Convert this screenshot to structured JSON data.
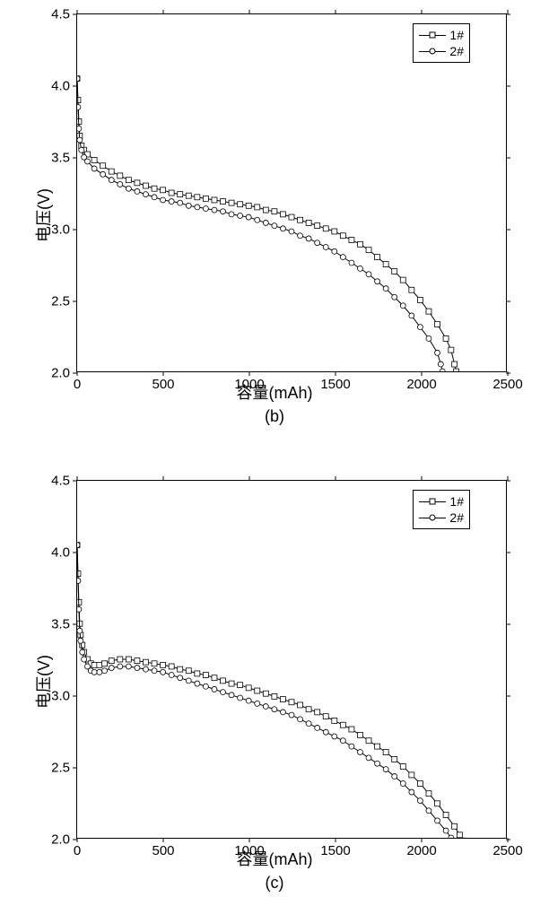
{
  "chart_b": {
    "type": "line",
    "subplot_label": "(b)",
    "xlabel": "容量(mAh)",
    "ylabel": "电压(V)",
    "xlim": [
      0,
      2500
    ],
    "ylim": [
      2.0,
      4.5
    ],
    "xtick_step": 500,
    "ytick_step": 0.5,
    "xticks": [
      0,
      500,
      1000,
      1500,
      2000,
      2500
    ],
    "yticks": [
      2.0,
      2.5,
      3.0,
      3.5,
      4.0,
      4.5
    ],
    "background_color": "#ffffff",
    "border_color": "#000000",
    "label_fontsize": 18,
    "tick_fontsize": 15,
    "series": [
      {
        "name": "1#",
        "marker": "square",
        "color": "#000000",
        "x": [
          0,
          5,
          10,
          15,
          25,
          40,
          60,
          100,
          150,
          200,
          250,
          300,
          350,
          400,
          450,
          500,
          550,
          600,
          650,
          700,
          750,
          800,
          850,
          900,
          950,
          1000,
          1050,
          1100,
          1150,
          1200,
          1250,
          1300,
          1350,
          1400,
          1450,
          1500,
          1550,
          1600,
          1650,
          1700,
          1750,
          1800,
          1850,
          1900,
          1950,
          2000,
          2050,
          2100,
          2150,
          2180,
          2200,
          2210,
          2220,
          2225,
          2230
        ],
        "y": [
          4.05,
          3.9,
          3.75,
          3.65,
          3.58,
          3.55,
          3.52,
          3.48,
          3.44,
          3.4,
          3.37,
          3.34,
          3.32,
          3.3,
          3.28,
          3.27,
          3.25,
          3.24,
          3.23,
          3.22,
          3.21,
          3.2,
          3.19,
          3.18,
          3.17,
          3.16,
          3.15,
          3.13,
          3.12,
          3.1,
          3.08,
          3.06,
          3.04,
          3.02,
          3.0,
          2.98,
          2.95,
          2.92,
          2.89,
          2.85,
          2.8,
          2.75,
          2.7,
          2.64,
          2.57,
          2.5,
          2.42,
          2.33,
          2.23,
          2.15,
          2.05,
          2.0,
          1.96,
          1.93,
          1.9
        ]
      },
      {
        "name": "2#",
        "marker": "circle",
        "color": "#000000",
        "x": [
          0,
          5,
          10,
          15,
          25,
          40,
          60,
          100,
          150,
          200,
          250,
          300,
          350,
          400,
          450,
          500,
          550,
          600,
          650,
          700,
          750,
          800,
          850,
          900,
          950,
          1000,
          1050,
          1100,
          1150,
          1200,
          1250,
          1300,
          1350,
          1400,
          1450,
          1500,
          1550,
          1600,
          1650,
          1700,
          1750,
          1800,
          1850,
          1900,
          1950,
          2000,
          2050,
          2100,
          2120,
          2130,
          2140,
          2145,
          2150
        ],
        "y": [
          4.05,
          3.85,
          3.7,
          3.62,
          3.55,
          3.5,
          3.47,
          3.42,
          3.38,
          3.34,
          3.31,
          3.28,
          3.26,
          3.24,
          3.22,
          3.2,
          3.19,
          3.18,
          3.16,
          3.15,
          3.14,
          3.13,
          3.12,
          3.1,
          3.09,
          3.08,
          3.06,
          3.04,
          3.02,
          3.0,
          2.98,
          2.95,
          2.93,
          2.9,
          2.87,
          2.84,
          2.8,
          2.76,
          2.72,
          2.68,
          2.63,
          2.58,
          2.52,
          2.46,
          2.39,
          2.31,
          2.23,
          2.13,
          2.05,
          2.0,
          1.96,
          1.93,
          1.9
        ]
      }
    ],
    "legend": {
      "items": [
        "1#",
        "2#"
      ]
    }
  },
  "chart_c": {
    "type": "line",
    "subplot_label": "(c)",
    "xlabel": "容量(mAh)",
    "ylabel": "电压(V)",
    "xlim": [
      0,
      2500
    ],
    "ylim": [
      2.0,
      4.5
    ],
    "xtick_step": 500,
    "ytick_step": 0.5,
    "xticks": [
      0,
      500,
      1000,
      1500,
      2000,
      2500
    ],
    "yticks": [
      2.0,
      2.5,
      3.0,
      3.5,
      4.0,
      4.5
    ],
    "background_color": "#ffffff",
    "border_color": "#000000",
    "label_fontsize": 18,
    "tick_fontsize": 15,
    "series": [
      {
        "name": "1#",
        "marker": "square",
        "color": "#000000",
        "x": [
          0,
          5,
          10,
          15,
          20,
          30,
          40,
          60,
          80,
          100,
          130,
          160,
          200,
          250,
          300,
          350,
          400,
          450,
          500,
          550,
          600,
          650,
          700,
          750,
          800,
          850,
          900,
          950,
          1000,
          1050,
          1100,
          1150,
          1200,
          1250,
          1300,
          1350,
          1400,
          1450,
          1500,
          1550,
          1600,
          1650,
          1700,
          1750,
          1800,
          1850,
          1900,
          1950,
          2000,
          2050,
          2100,
          2150,
          2200,
          2230,
          2250,
          2260,
          2270
        ],
        "y": [
          4.05,
          3.85,
          3.65,
          3.5,
          3.42,
          3.35,
          3.3,
          3.25,
          3.22,
          3.21,
          3.21,
          3.22,
          3.24,
          3.25,
          3.25,
          3.24,
          3.23,
          3.22,
          3.21,
          3.2,
          3.18,
          3.17,
          3.15,
          3.14,
          3.12,
          3.1,
          3.08,
          3.07,
          3.05,
          3.03,
          3.01,
          2.99,
          2.97,
          2.95,
          2.93,
          2.9,
          2.88,
          2.85,
          2.82,
          2.79,
          2.76,
          2.72,
          2.68,
          2.64,
          2.6,
          2.55,
          2.5,
          2.44,
          2.38,
          2.31,
          2.24,
          2.16,
          2.08,
          2.02,
          1.98,
          1.94,
          1.9
        ]
      },
      {
        "name": "2#",
        "marker": "circle",
        "color": "#000000",
        "x": [
          0,
          5,
          10,
          15,
          20,
          30,
          40,
          60,
          80,
          100,
          130,
          160,
          200,
          250,
          300,
          350,
          400,
          450,
          500,
          550,
          600,
          650,
          700,
          750,
          800,
          850,
          900,
          950,
          1000,
          1050,
          1100,
          1150,
          1200,
          1250,
          1300,
          1350,
          1400,
          1450,
          1500,
          1550,
          1600,
          1650,
          1700,
          1750,
          1800,
          1850,
          1900,
          1950,
          2000,
          2050,
          2100,
          2150,
          2180,
          2200,
          2210,
          2220
        ],
        "y": [
          4.05,
          3.8,
          3.6,
          3.45,
          3.38,
          3.3,
          3.25,
          3.2,
          3.17,
          3.16,
          3.16,
          3.17,
          3.19,
          3.2,
          3.2,
          3.19,
          3.18,
          3.17,
          3.16,
          3.14,
          3.12,
          3.1,
          3.08,
          3.06,
          3.04,
          3.02,
          3.0,
          2.98,
          2.96,
          2.94,
          2.92,
          2.9,
          2.88,
          2.86,
          2.83,
          2.8,
          2.77,
          2.74,
          2.71,
          2.68,
          2.64,
          2.6,
          2.56,
          2.52,
          2.48,
          2.43,
          2.38,
          2.32,
          2.26,
          2.19,
          2.12,
          2.05,
          2.0,
          1.96,
          1.93,
          1.9
        ]
      }
    ],
    "legend": {
      "items": [
        "1#",
        "2#"
      ]
    }
  }
}
